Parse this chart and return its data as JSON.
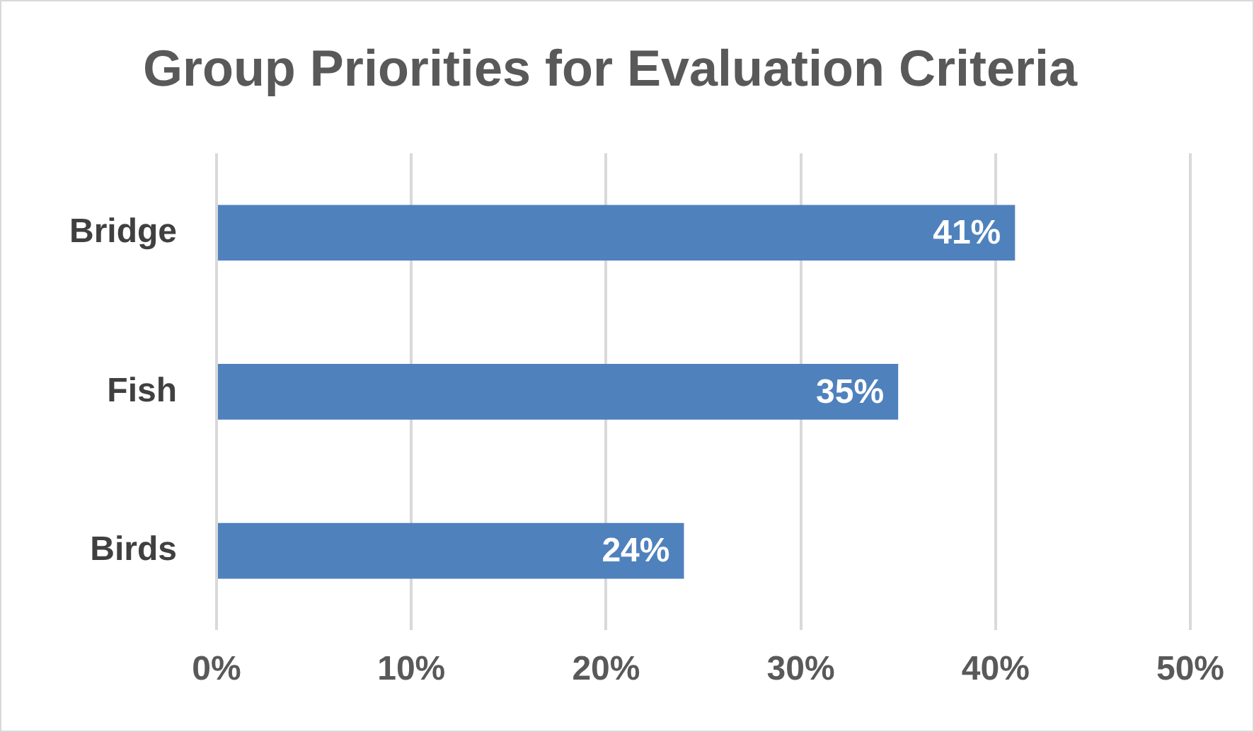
{
  "chart_data": {
    "type": "bar",
    "orientation": "horizontal",
    "title": "Group Priorities for Evaluation Criteria",
    "categories": [
      "Bridge",
      "Fish",
      "Birds"
    ],
    "values": [
      41,
      35,
      24
    ],
    "value_labels": [
      "41%",
      "35%",
      "24%"
    ],
    "color": "#4f81bd",
    "xlim": [
      0,
      50
    ],
    "xticks": [
      {
        "value": 0,
        "label": "0%"
      },
      {
        "value": 10,
        "label": "10%"
      },
      {
        "value": 20,
        "label": "20%"
      },
      {
        "value": 30,
        "label": "30%"
      },
      {
        "value": 40,
        "label": "40%"
      },
      {
        "value": 50,
        "label": "50%"
      }
    ],
    "grid": "x"
  }
}
